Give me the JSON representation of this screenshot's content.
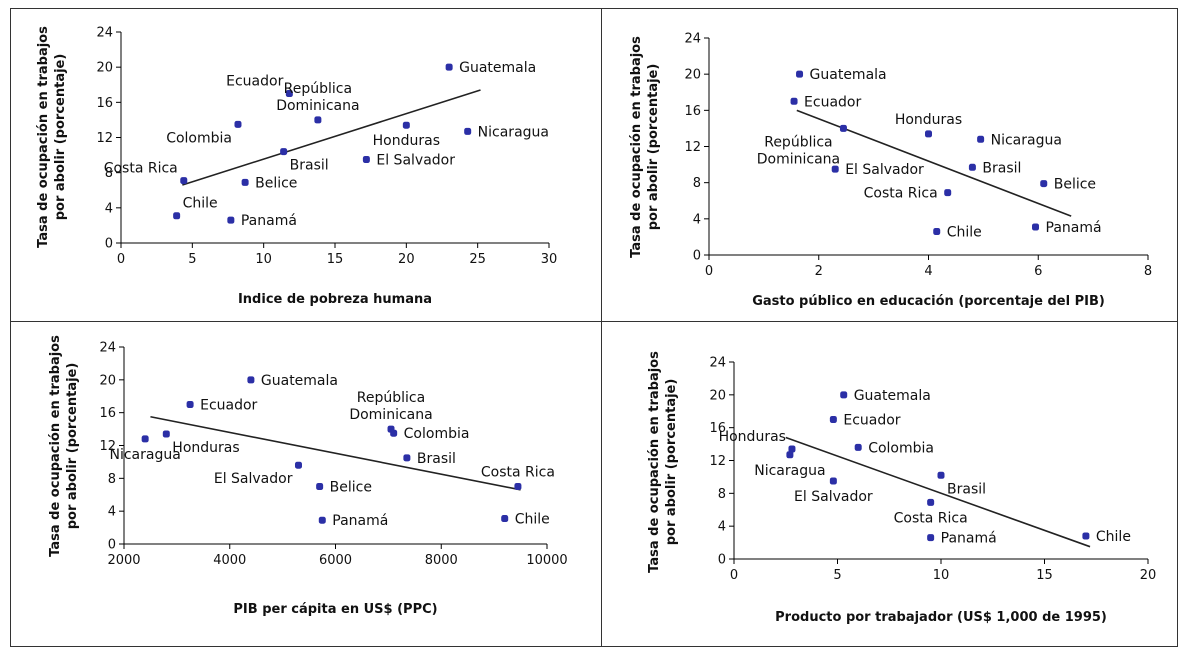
{
  "chart_data": [
    {
      "type": "scatter",
      "xlabel": "Indice de pobreza humana",
      "ylabel": [
        "Tasa de ocupación en trabajos",
        "por abolir (porcentaje)"
      ],
      "xlim": [
        0,
        30
      ],
      "xticks": [
        0,
        5,
        10,
        15,
        20,
        25,
        30
      ],
      "ylim": [
        0,
        24
      ],
      "yticks": [
        0,
        4,
        8,
        12,
        16,
        20,
        24
      ],
      "trendline": {
        "x": [
          4.3,
          25.2
        ],
        "y": [
          6.6,
          17.4
        ]
      },
      "points": [
        {
          "label": "Guatemala",
          "x": 23.0,
          "y": 20.0,
          "labelPos": "right"
        },
        {
          "label": [
            "Ecuador"
          ],
          "x": 11.8,
          "y": 17.0,
          "labelPos": "left-above"
        },
        {
          "label": [
            "República",
            "Dominicana"
          ],
          "x": 13.8,
          "y": 14.0,
          "labelPos": "above"
        },
        {
          "label": "Colombia",
          "x": 8.2,
          "y": 13.5,
          "labelPos": "left-below"
        },
        {
          "label": "Nicaragua",
          "x": 24.3,
          "y": 12.7,
          "labelPos": "right"
        },
        {
          "label": "Honduras",
          "x": 20.0,
          "y": 13.4,
          "labelPos": "below"
        },
        {
          "label": "Brasil",
          "x": 11.4,
          "y": 10.4,
          "labelPos": "right-below"
        },
        {
          "label": "El Salvador",
          "x": 17.2,
          "y": 9.5,
          "labelPos": "right"
        },
        {
          "label": "Costa Rica",
          "x": 4.4,
          "y": 7.1,
          "labelPos": "left-above"
        },
        {
          "label": "Belice",
          "x": 8.7,
          "y": 6.9,
          "labelPos": "right"
        },
        {
          "label": "Chile",
          "x": 3.9,
          "y": 3.1,
          "labelPos": "right-above"
        },
        {
          "label": "Panamá",
          "x": 7.7,
          "y": 2.6,
          "labelPos": "right"
        }
      ]
    },
    {
      "type": "scatter",
      "xlabel": "Gasto público en educación (porcentaje del PIB)",
      "ylabel": [
        "Tasa de ocupación en trabajos",
        "por abolir (porcentaje)"
      ],
      "xlim": [
        0,
        8
      ],
      "xticks": [
        0,
        2,
        4,
        6,
        8
      ],
      "ylim": [
        0,
        24
      ],
      "yticks": [
        0,
        4,
        8,
        12,
        16,
        20,
        24
      ],
      "trendline": {
        "x": [
          1.6,
          6.6
        ],
        "y": [
          16.0,
          4.3
        ]
      },
      "points": [
        {
          "label": "Guatemala",
          "x": 1.65,
          "y": 20.0,
          "labelPos": "right"
        },
        {
          "label": "Ecuador",
          "x": 1.55,
          "y": 17.0,
          "labelPos": "right"
        },
        {
          "label": [
            "República",
            "Dominicana"
          ],
          "x": 2.45,
          "y": 14.0,
          "labelPos": "left-below"
        },
        {
          "label": "Honduras",
          "x": 4.0,
          "y": 13.4,
          "labelPos": "above"
        },
        {
          "label": "Nicaragua",
          "x": 4.95,
          "y": 12.8,
          "labelPos": "right"
        },
        {
          "label": "Brasil",
          "x": 4.8,
          "y": 9.7,
          "labelPos": "right"
        },
        {
          "label": "El Salvador",
          "x": 2.3,
          "y": 9.5,
          "labelPos": "right"
        },
        {
          "label": "Belice",
          "x": 6.1,
          "y": 7.9,
          "labelPos": "right"
        },
        {
          "label": "Costa Rica",
          "x": 4.35,
          "y": 6.9,
          "labelPos": "left"
        },
        {
          "label": "Chile",
          "x": 4.15,
          "y": 2.6,
          "labelPos": "right"
        },
        {
          "label": "Panamá",
          "x": 5.95,
          "y": 3.1,
          "labelPos": "right"
        }
      ]
    },
    {
      "type": "scatter",
      "xlabel": "PIB per cápita en US$ (PPC)",
      "ylabel": [
        "Tasa de ocupación en trabajos",
        "por abolir (porcentaje)"
      ],
      "xlim": [
        2000,
        10000
      ],
      "xticks": [
        2000,
        4000,
        6000,
        8000,
        10000
      ],
      "ylim": [
        0,
        24
      ],
      "yticks": [
        0,
        4,
        8,
        12,
        16,
        20,
        24
      ],
      "trendline": {
        "x": [
          2500,
          9500
        ],
        "y": [
          15.5,
          6.6
        ]
      },
      "points": [
        {
          "label": "Guatemala",
          "x": 4400,
          "y": 20.0,
          "labelPos": "right"
        },
        {
          "label": "Ecuador",
          "x": 3250,
          "y": 17.0,
          "labelPos": "right"
        },
        {
          "label": [
            "República",
            "Dominicana"
          ],
          "x": 7050,
          "y": 14.0,
          "labelPos": "above"
        },
        {
          "label": "Colombia",
          "x": 7100,
          "y": 13.5,
          "labelPos": "right"
        },
        {
          "label": "Honduras",
          "x": 2800,
          "y": 13.4,
          "labelPos": "right-below"
        },
        {
          "label": "Nicaragua",
          "x": 2400,
          "y": 12.8,
          "labelPos": "below"
        },
        {
          "label": "Brasil",
          "x": 7350,
          "y": 10.5,
          "labelPos": "right"
        },
        {
          "label": "El Salvador",
          "x": 5300,
          "y": 9.6,
          "labelPos": "left-below"
        },
        {
          "label": "Belice",
          "x": 5700,
          "y": 7.0,
          "labelPos": "right"
        },
        {
          "label": "Costa Rica",
          "x": 9450,
          "y": 7.0,
          "labelPos": "above"
        },
        {
          "label": "Panamá",
          "x": 5750,
          "y": 2.9,
          "labelPos": "right"
        },
        {
          "label": "Chile",
          "x": 9200,
          "y": 3.1,
          "labelPos": "right"
        }
      ]
    },
    {
      "type": "scatter",
      "xlabel": "Producto por trabajador (US$ 1,000 de 1995)",
      "ylabel": [
        "Tasa de ocupación en trabajos",
        "por abolir (porcentaje)"
      ],
      "xlim": [
        0,
        20
      ],
      "xticks": [
        0,
        5,
        10,
        15,
        20
      ],
      "ylim": [
        0,
        24
      ],
      "yticks": [
        0,
        4,
        8,
        12,
        16,
        20,
        24
      ],
      "trendline": {
        "x": [
          2.5,
          17.2
        ],
        "y": [
          14.8,
          1.5
        ]
      },
      "points": [
        {
          "label": "Guatemala",
          "x": 5.3,
          "y": 20.0,
          "labelPos": "right"
        },
        {
          "label": "Ecuador",
          "x": 4.8,
          "y": 17.0,
          "labelPos": "right"
        },
        {
          "label": "Honduras",
          "x": 2.8,
          "y": 13.4,
          "labelPos": "left-above"
        },
        {
          "label": "Colombia",
          "x": 6.0,
          "y": 13.6,
          "labelPos": "right"
        },
        {
          "label": "Nicaragua",
          "x": 2.7,
          "y": 12.7,
          "labelPos": "below"
        },
        {
          "label": "Brasil",
          "x": 10.0,
          "y": 10.2,
          "labelPos": "right-below"
        },
        {
          "label": "El Salvador",
          "x": 4.8,
          "y": 9.5,
          "labelPos": "below"
        },
        {
          "label": "Costa Rica",
          "x": 9.5,
          "y": 6.9,
          "labelPos": "below"
        },
        {
          "label": "Panamá",
          "x": 9.5,
          "y": 2.6,
          "labelPos": "right"
        },
        {
          "label": "Chile",
          "x": 17.0,
          "y": 2.8,
          "labelPos": "right"
        }
      ]
    }
  ],
  "colors": {
    "marker": "#2b2fa6",
    "line": "#222222",
    "frame": "#333333"
  }
}
